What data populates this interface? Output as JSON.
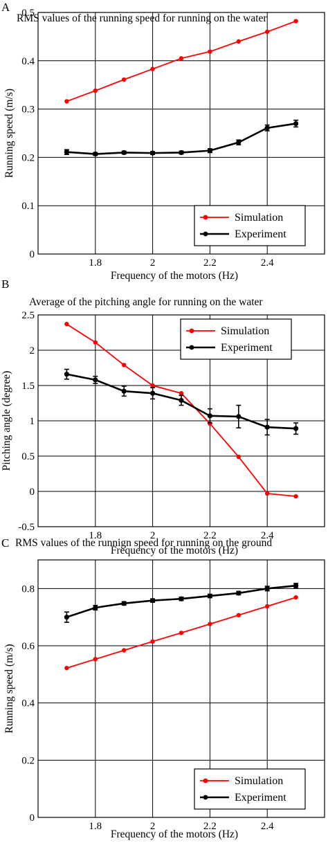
{
  "figure": {
    "panels": [
      "A",
      "B",
      "C"
    ]
  },
  "colors": {
    "simulation": "#ff0000",
    "experiment": "#000000",
    "grid": "#000000"
  },
  "chart_data": [
    {
      "type": "line",
      "panel": "A",
      "title": "RMS values of the running speed for running on the water",
      "xlabel": "Frequency of the motors (Hz)",
      "ylabel": "Running speed (m/s)",
      "xlim": [
        1.6,
        2.6
      ],
      "ylim": [
        0,
        0.5
      ],
      "xticks": [
        1.8,
        2.0,
        2.2,
        2.4
      ],
      "xtick_labels": [
        "1.8",
        "2",
        "2.2",
        "2.4"
      ],
      "yticks": [
        0,
        0.1,
        0.2,
        0.3,
        0.4,
        0.5
      ],
      "ytick_labels": [
        "0",
        "0.1",
        "0.2",
        "0.3",
        "0.4",
        "0.5"
      ],
      "grid": true,
      "legend": "bottom-right",
      "x": [
        1.7,
        1.8,
        1.9,
        2.0,
        2.1,
        2.2,
        2.3,
        2.4,
        2.5
      ],
      "series": [
        {
          "name": "Simulation",
          "color": "#ff0000",
          "values": [
            0.316,
            0.338,
            0.361,
            0.383,
            0.405,
            0.419,
            0.44,
            0.46,
            0.482
          ]
        },
        {
          "name": "Experiment",
          "color": "#000000",
          "values": [
            0.211,
            0.207,
            0.21,
            0.209,
            0.21,
            0.214,
            0.231,
            0.261,
            0.27
          ],
          "error": [
            0.005,
            0.003,
            0.003,
            0.003,
            0.003,
            0.004,
            0.005,
            0.006,
            0.007
          ]
        }
      ]
    },
    {
      "type": "line",
      "panel": "B",
      "title": "Average of the pitching angle for running on the water",
      "xlabel": "Frequency of the motors (Hz)",
      "ylabel": "Pitching angle (degree)",
      "xlim": [
        1.6,
        2.6
      ],
      "ylim": [
        -0.5,
        2.5
      ],
      "xticks": [
        1.8,
        2.0,
        2.2,
        2.4
      ],
      "xtick_labels": [
        "1.8",
        "2",
        "2.2",
        "2.4"
      ],
      "yticks": [
        -0.5,
        0,
        0.5,
        1,
        1.5,
        2,
        2.5
      ],
      "ytick_labels": [
        "-0.5",
        "0",
        "0.5",
        "1",
        "1.5",
        "2",
        "2.5"
      ],
      "grid": true,
      "legend": "top-right",
      "x": [
        1.7,
        1.8,
        1.9,
        2.0,
        2.1,
        2.2,
        2.3,
        2.4,
        2.5
      ],
      "series": [
        {
          "name": "Simulation",
          "color": "#ff0000",
          "values": [
            2.37,
            2.11,
            1.79,
            1.5,
            1.39,
            0.96,
            0.49,
            -0.03,
            -0.07
          ]
        },
        {
          "name": "Experiment",
          "color": "#000000",
          "values": [
            1.66,
            1.58,
            1.42,
            1.39,
            1.29,
            1.07,
            1.06,
            0.91,
            0.89
          ],
          "error": [
            0.07,
            0.05,
            0.07,
            0.08,
            0.07,
            0.1,
            0.16,
            0.11,
            0.08
          ]
        }
      ]
    },
    {
      "type": "line",
      "panel": "C",
      "title": "RMS values of the runnign speed for running on the ground",
      "xlabel": "Frequency of the motors (Hz)",
      "ylabel": "Running speed (m/s)",
      "xlim": [
        1.6,
        2.6
      ],
      "ylim": [
        0,
        0.9
      ],
      "xticks": [
        1.8,
        2.0,
        2.2,
        2.4
      ],
      "xtick_labels": [
        "1.8",
        "2",
        "2.2",
        "2.4"
      ],
      "yticks": [
        0,
        0.2,
        0.4,
        0.6,
        0.8
      ],
      "ytick_labels": [
        "0",
        "0.2",
        "0.4",
        "0.6",
        "0.8"
      ],
      "grid": true,
      "legend": "bottom-right",
      "x": [
        1.7,
        1.8,
        1.9,
        2.0,
        2.1,
        2.2,
        2.3,
        2.4,
        2.5
      ],
      "series": [
        {
          "name": "Simulation",
          "color": "#ff0000",
          "values": [
            0.522,
            0.553,
            0.584,
            0.615,
            0.645,
            0.676,
            0.707,
            0.738,
            0.769
          ]
        },
        {
          "name": "Experiment",
          "color": "#000000",
          "values": [
            0.7,
            0.733,
            0.748,
            0.758,
            0.764,
            0.774,
            0.784,
            0.8,
            0.81
          ],
          "error": [
            0.018,
            0.008,
            0.006,
            0.006,
            0.006,
            0.006,
            0.006,
            0.008,
            0.008
          ]
        }
      ]
    }
  ]
}
